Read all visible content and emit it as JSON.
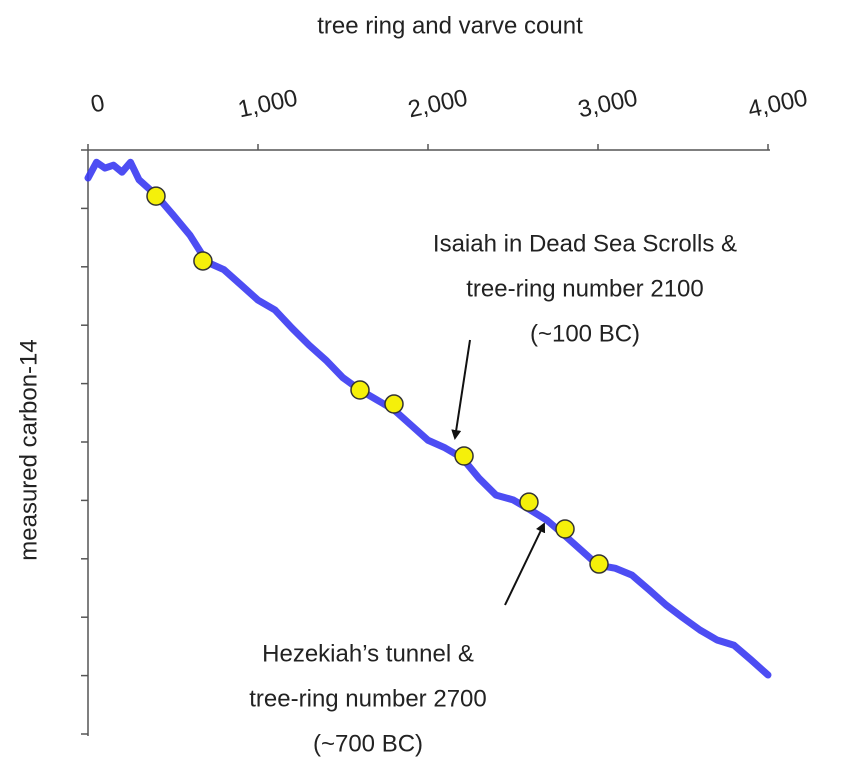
{
  "chart_data": {
    "type": "line",
    "xlabel": "tree ring and varve count",
    "ylabel": "measured carbon-14",
    "xlim": [
      0,
      4000
    ],
    "xticks": [
      0,
      {
        "value": 1000,
        "label": "1,000"
      },
      {
        "value": 2000,
        "label": "2,000"
      },
      {
        "value": 3000,
        "label": "3,000"
      },
      {
        "value": 4000,
        "label": "4,000"
      }
    ],
    "ylim": [
      0,
      10
    ],
    "yticks": [
      0,
      1,
      2,
      3,
      4,
      5,
      6,
      7,
      8,
      9,
      10
    ],
    "color": "#3a3af2",
    "x": [
      0,
      50,
      100,
      150,
      200,
      250,
      300,
      400,
      500,
      600,
      700,
      800,
      900,
      1000,
      1100,
      1200,
      1300,
      1400,
      1500,
      1600,
      1700,
      1800,
      1900,
      2000,
      2100,
      2200,
      2300,
      2400,
      2500,
      2600,
      2700,
      2800,
      2900,
      3000,
      3100,
      3200,
      3300,
      3400,
      3500,
      3600,
      3700,
      3800,
      3900,
      4000
    ],
    "values": [
      9.52,
      9.79,
      9.69,
      9.74,
      9.62,
      9.79,
      9.49,
      9.23,
      8.89,
      8.54,
      8.08,
      7.95,
      7.69,
      7.43,
      7.26,
      6.95,
      6.66,
      6.4,
      6.1,
      5.89,
      5.72,
      5.55,
      5.29,
      5.03,
      4.9,
      4.73,
      4.38,
      4.09,
      4.01,
      3.84,
      3.66,
      3.41,
      3.15,
      2.89,
      2.84,
      2.72,
      2.47,
      2.21,
      1.99,
      1.78,
      1.61,
      1.52,
      1.27,
      1.01
    ],
    "points": {
      "color": "#f5f00a",
      "x": [
        400,
        676,
        1600,
        1800,
        2212,
        2594,
        2806,
        3006
      ],
      "values": [
        9.21,
        8.1,
        5.89,
        5.65,
        4.76,
        3.97,
        3.51,
        2.91
      ]
    },
    "annotations": [
      {
        "lines": [
          "Isaiah in Dead Sea Scrolls &",
          "tree-ring number 2100",
          "(~100 BC)"
        ]
      },
      {
        "lines": [
          "Hezekiah’s tunnel &",
          "tree-ring number 2700",
          "(~700 BC)"
        ]
      }
    ]
  }
}
